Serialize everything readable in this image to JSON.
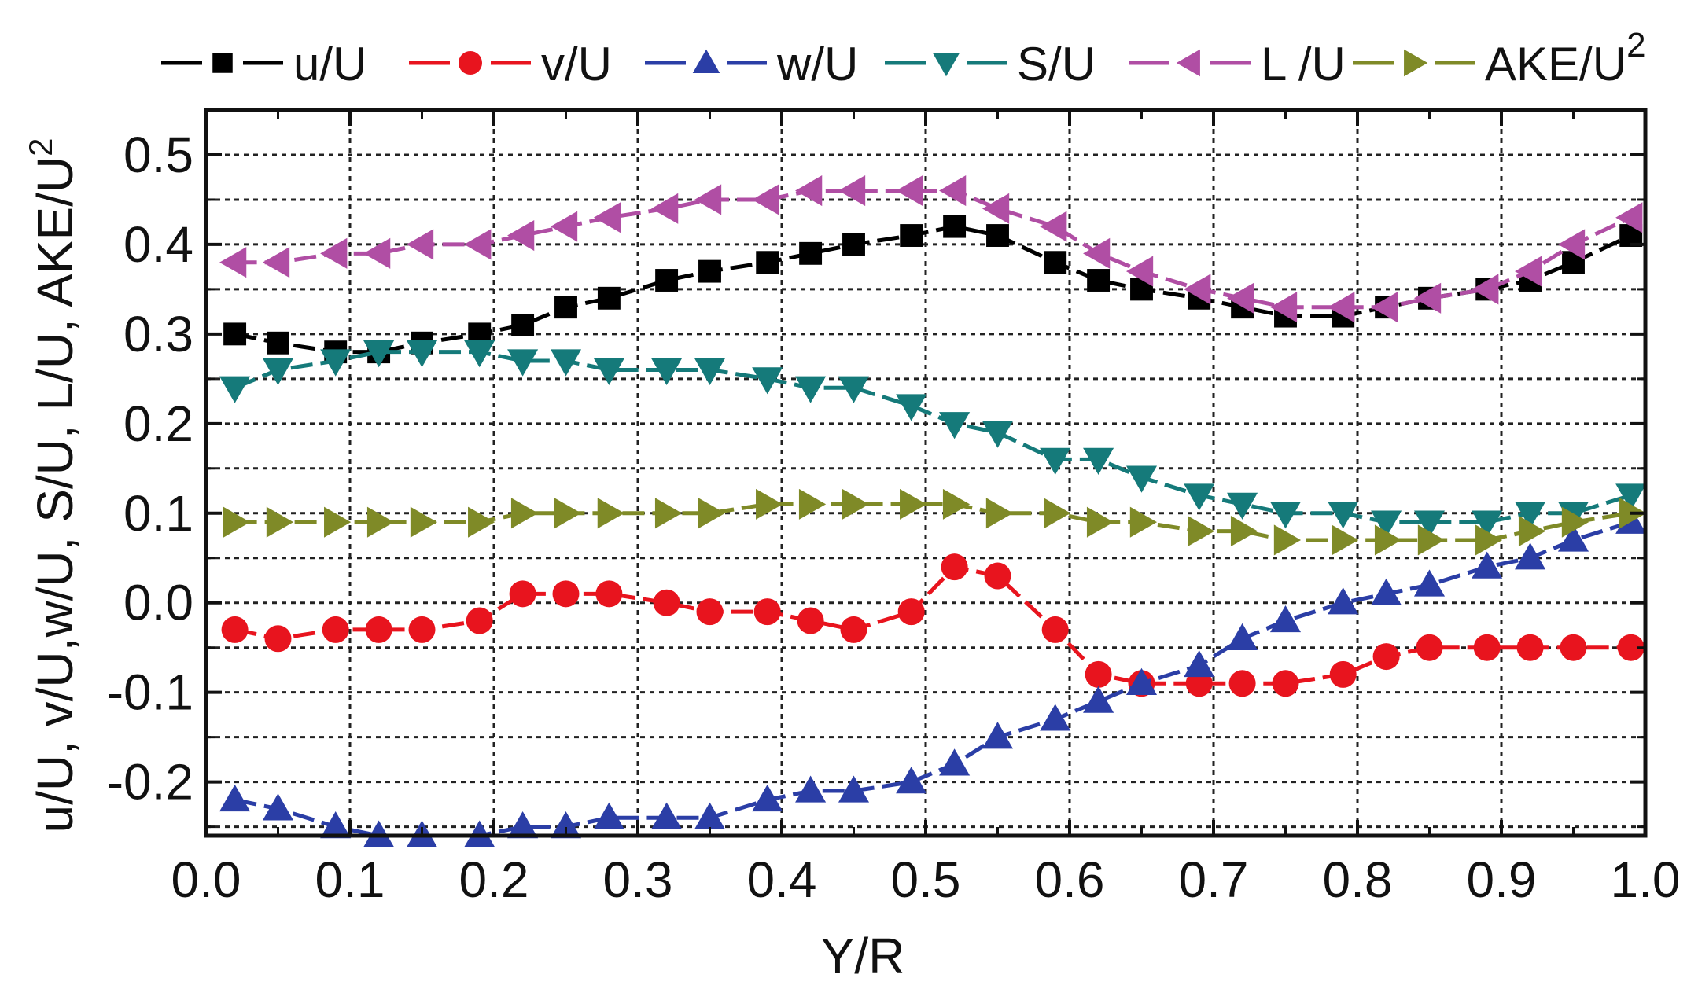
{
  "chart_data": {
    "type": "line",
    "title": "",
    "xlabel": "Y/R",
    "ylabel": "u/U, v/U,w/U, S/U, L/U, AKE/U",
    "ylabel_superscript": "2",
    "xlim": [
      0.0,
      1.0
    ],
    "ylim": [
      -0.26,
      0.55
    ],
    "grid": true,
    "legend_position": "top",
    "x_ticks": [
      "0.0",
      "0.1",
      "0.2",
      "0.3",
      "0.4",
      "0.5",
      "0.6",
      "0.7",
      "0.8",
      "0.9",
      "1.0"
    ],
    "y_ticks": [
      "0.5",
      "0.4",
      "0.3",
      "0.2",
      "0.1",
      "0.0",
      "-0.1",
      "-0.2"
    ],
    "x": [
      0.02,
      0.05,
      0.09,
      0.12,
      0.15,
      0.19,
      0.22,
      0.25,
      0.28,
      0.32,
      0.35,
      0.39,
      0.42,
      0.45,
      0.49,
      0.52,
      0.55,
      0.59,
      0.62,
      0.65,
      0.69,
      0.72,
      0.75,
      0.79,
      0.82,
      0.85,
      0.89,
      0.92,
      0.95,
      0.99
    ],
    "series": [
      {
        "name": "u/U",
        "label": "u/U",
        "label_superscript": "",
        "color": "#000000",
        "marker": "square",
        "values": [
          0.3,
          0.29,
          0.28,
          0.28,
          0.29,
          0.3,
          0.31,
          0.33,
          0.34,
          0.36,
          0.37,
          0.38,
          0.39,
          0.4,
          0.41,
          0.42,
          0.41,
          0.38,
          0.36,
          0.35,
          0.34,
          0.33,
          0.32,
          0.32,
          0.33,
          0.34,
          0.35,
          0.36,
          0.38,
          0.41
        ]
      },
      {
        "name": "v/U",
        "label": "v/U",
        "label_superscript": "",
        "color": "#e8141e",
        "marker": "circle",
        "values": [
          -0.03,
          -0.04,
          -0.03,
          -0.03,
          -0.03,
          -0.02,
          0.01,
          0.01,
          0.01,
          0.0,
          -0.01,
          -0.01,
          -0.02,
          -0.03,
          -0.01,
          0.04,
          0.03,
          -0.03,
          -0.08,
          -0.09,
          -0.09,
          -0.09,
          -0.09,
          -0.08,
          -0.06,
          -0.05,
          -0.05,
          -0.05,
          -0.05,
          -0.05
        ]
      },
      {
        "name": "w/U",
        "label": "w/U",
        "label_superscript": "",
        "color": "#2b3ea6",
        "marker": "triangle-up",
        "values": [
          -0.22,
          -0.23,
          -0.25,
          -0.26,
          -0.26,
          -0.26,
          -0.25,
          -0.25,
          -0.24,
          -0.24,
          -0.24,
          -0.22,
          -0.21,
          -0.21,
          -0.2,
          -0.18,
          -0.15,
          -0.13,
          -0.11,
          -0.09,
          -0.07,
          -0.04,
          -0.02,
          0.0,
          0.01,
          0.02,
          0.04,
          0.05,
          0.07,
          0.09
        ]
      },
      {
        "name": "S/U",
        "label": "S/U",
        "label_superscript": "",
        "color": "#157a7a",
        "marker": "triangle-down",
        "values": [
          0.24,
          0.26,
          0.27,
          0.28,
          0.28,
          0.28,
          0.27,
          0.27,
          0.26,
          0.26,
          0.26,
          0.25,
          0.24,
          0.24,
          0.22,
          0.2,
          0.19,
          0.16,
          0.16,
          0.14,
          0.12,
          0.11,
          0.1,
          0.1,
          0.09,
          0.09,
          0.09,
          0.1,
          0.1,
          0.12
        ]
      },
      {
        "name": "L/U",
        "label": "L /U",
        "label_superscript": "",
        "color": "#b04ea4",
        "marker": "triangle-left",
        "values": [
          0.38,
          0.38,
          0.39,
          0.39,
          0.4,
          0.4,
          0.41,
          0.42,
          0.43,
          0.44,
          0.45,
          0.45,
          0.46,
          0.46,
          0.46,
          0.46,
          0.44,
          0.42,
          0.39,
          0.37,
          0.35,
          0.34,
          0.33,
          0.33,
          0.33,
          0.34,
          0.35,
          0.37,
          0.4,
          0.43
        ]
      },
      {
        "name": "AKE/U2",
        "label": "AKE/U",
        "label_superscript": "2",
        "color": "#7f8a27",
        "marker": "triangle-right",
        "values": [
          0.09,
          0.09,
          0.09,
          0.09,
          0.09,
          0.09,
          0.1,
          0.1,
          0.1,
          0.1,
          0.1,
          0.11,
          0.11,
          0.11,
          0.11,
          0.11,
          0.1,
          0.1,
          0.09,
          0.09,
          0.08,
          0.08,
          0.07,
          0.07,
          0.07,
          0.07,
          0.07,
          0.08,
          0.09,
          0.1
        ]
      }
    ]
  }
}
